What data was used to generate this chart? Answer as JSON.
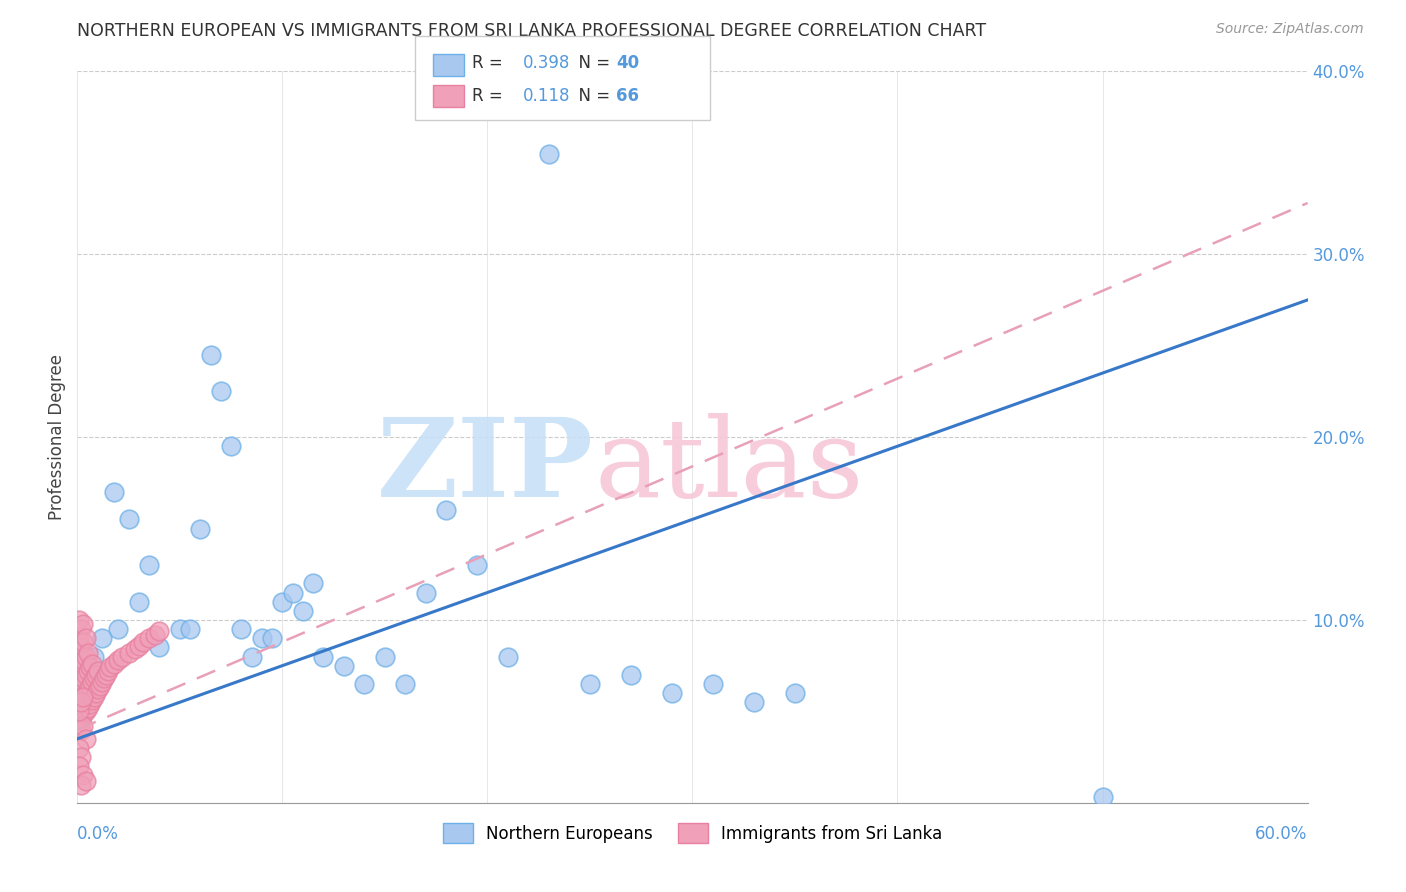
{
  "title": "NORTHERN EUROPEAN VS IMMIGRANTS FROM SRI LANKA PROFESSIONAL DEGREE CORRELATION CHART",
  "source": "Source: ZipAtlas.com",
  "ylabel": "Professional Degree",
  "xlim": [
    0.0,
    0.6
  ],
  "ylim": [
    0.0,
    0.4
  ],
  "ytick_labels": [
    "",
    "10.0%",
    "20.0%",
    "30.0%",
    "40.0%"
  ],
  "ytick_values": [
    0.0,
    0.1,
    0.2,
    0.3,
    0.4
  ],
  "blue_R": 0.398,
  "blue_N": 40,
  "pink_R": 0.118,
  "pink_N": 66,
  "blue_color": "#A8C8F0",
  "pink_color": "#F0A0B8",
  "blue_edge_color": "#6EB0E8",
  "pink_edge_color": "#E880A0",
  "blue_line_color": "#3878C8",
  "pink_line_color": "#E8A0B8",
  "watermark_zip_color": "#C8E0F8",
  "watermark_atlas_color": "#F8C8D8",
  "blue_points_x": [
    0.018,
    0.02,
    0.025,
    0.03,
    0.035,
    0.04,
    0.05,
    0.055,
    0.06,
    0.065,
    0.07,
    0.075,
    0.08,
    0.085,
    0.09,
    0.095,
    0.1,
    0.105,
    0.11,
    0.115,
    0.12,
    0.13,
    0.14,
    0.15,
    0.16,
    0.17,
    0.18,
    0.195,
    0.21,
    0.23,
    0.25,
    0.27,
    0.29,
    0.31,
    0.33,
    0.35,
    0.005,
    0.008,
    0.012,
    0.5
  ],
  "blue_points_y": [
    0.17,
    0.095,
    0.155,
    0.11,
    0.13,
    0.085,
    0.095,
    0.095,
    0.15,
    0.245,
    0.225,
    0.195,
    0.095,
    0.08,
    0.09,
    0.09,
    0.11,
    0.115,
    0.105,
    0.12,
    0.08,
    0.075,
    0.065,
    0.08,
    0.065,
    0.115,
    0.16,
    0.13,
    0.08,
    0.355,
    0.065,
    0.07,
    0.06,
    0.065,
    0.055,
    0.06,
    0.07,
    0.08,
    0.09,
    0.003
  ],
  "pink_points_x": [
    0.001,
    0.001,
    0.001,
    0.001,
    0.001,
    0.002,
    0.002,
    0.002,
    0.002,
    0.002,
    0.002,
    0.003,
    0.003,
    0.003,
    0.003,
    0.003,
    0.003,
    0.004,
    0.004,
    0.004,
    0.004,
    0.004,
    0.005,
    0.005,
    0.005,
    0.005,
    0.006,
    0.006,
    0.006,
    0.007,
    0.007,
    0.007,
    0.008,
    0.008,
    0.009,
    0.009,
    0.01,
    0.01,
    0.011,
    0.012,
    0.013,
    0.014,
    0.015,
    0.016,
    0.018,
    0.02,
    0.022,
    0.025,
    0.028,
    0.03,
    0.032,
    0.035,
    0.038,
    0.04,
    0.002,
    0.003,
    0.004,
    0.001,
    0.002,
    0.001,
    0.003,
    0.002,
    0.004,
    0.001,
    0.002,
    0.003
  ],
  "pink_points_y": [
    0.06,
    0.07,
    0.08,
    0.09,
    0.1,
    0.045,
    0.055,
    0.065,
    0.075,
    0.085,
    0.095,
    0.048,
    0.058,
    0.068,
    0.078,
    0.088,
    0.098,
    0.05,
    0.06,
    0.07,
    0.08,
    0.09,
    0.052,
    0.062,
    0.072,
    0.082,
    0.054,
    0.064,
    0.074,
    0.056,
    0.066,
    0.076,
    0.058,
    0.068,
    0.06,
    0.07,
    0.062,
    0.072,
    0.064,
    0.066,
    0.068,
    0.07,
    0.072,
    0.074,
    0.076,
    0.078,
    0.08,
    0.082,
    0.084,
    0.086,
    0.088,
    0.09,
    0.092,
    0.094,
    0.04,
    0.042,
    0.035,
    0.03,
    0.025,
    0.02,
    0.015,
    0.01,
    0.012,
    0.05,
    0.055,
    0.058
  ]
}
